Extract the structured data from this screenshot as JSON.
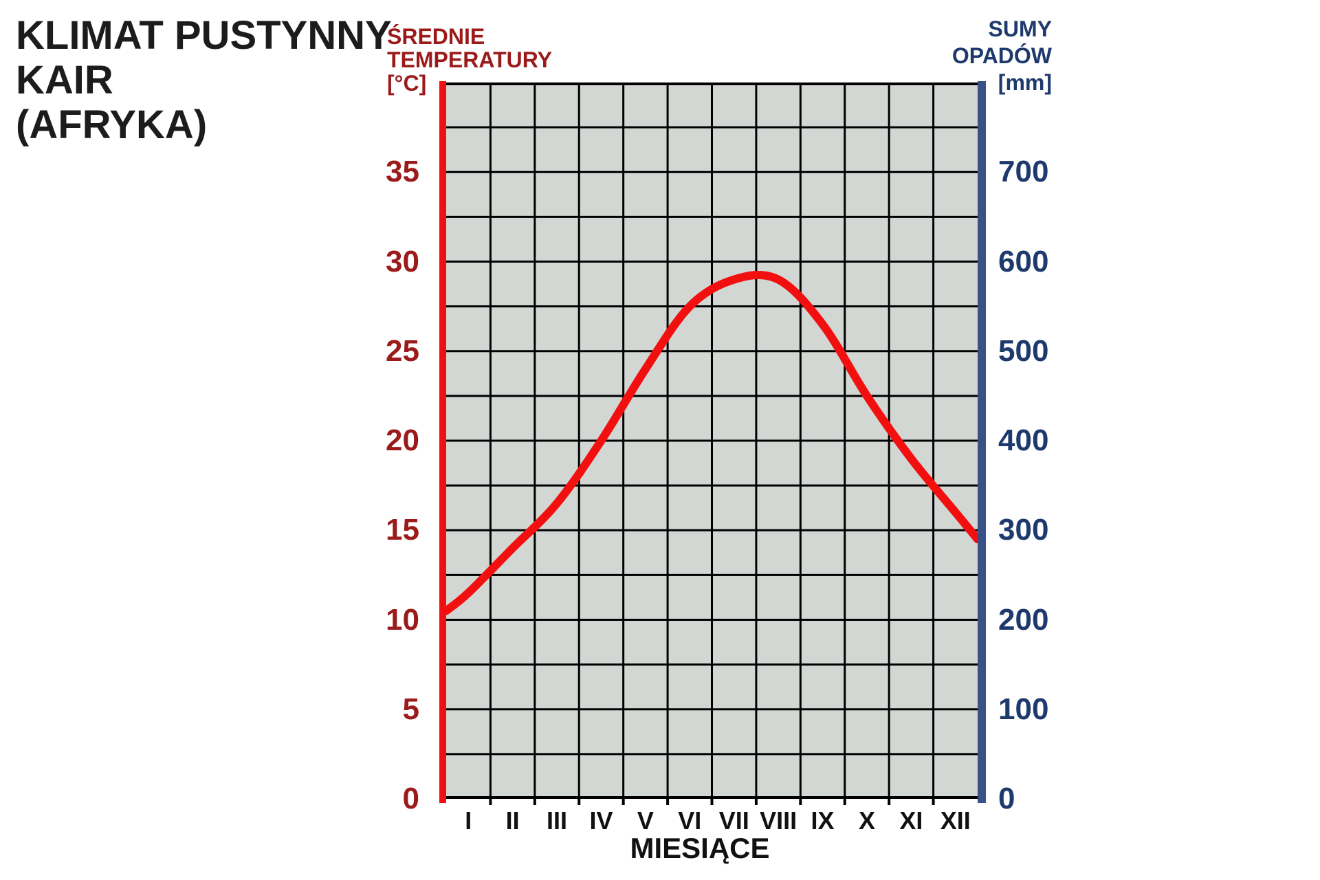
{
  "title_lines": [
    "KLIMAT PUSTYNNY",
    "KAIR",
    "(AFRYKA)"
  ],
  "left_axis_title_lines": [
    "ŚREDNIE",
    "TEMPERATURY",
    "[°C]"
  ],
  "right_axis_title_lines": [
    "SUMY",
    "OPADÓW",
    "[mm]"
  ],
  "x_axis_label": "MIESIĄCE",
  "colors": {
    "title_text": "#1c1c1c",
    "temp_axis_red": "#f20f0f",
    "temp_curve_red": "#f20f0f",
    "temp_label_maroon": "#9b1b1b",
    "precip_axis_navy": "#3a5187",
    "precip_label_navy": "#1e3a6d",
    "plot_background": "#d2d7d3",
    "grid_line": "#000000"
  },
  "chart_data": {
    "type": "line",
    "title": "KLIMAT PUSTYNNY KAIR (AFRYKA)",
    "categories": [
      "I",
      "II",
      "III",
      "IV",
      "V",
      "VI",
      "VII",
      "VIII",
      "IX",
      "X",
      "XI",
      "XII"
    ],
    "series": [
      {
        "name": "Średnie temperatury [°C]",
        "axis": "left",
        "color": "#f20f0f",
        "values": [
          11.5,
          14,
          16.5,
          20,
          24,
          27.5,
          29,
          29,
          26.5,
          22.5,
          19,
          16
        ]
      }
    ],
    "edge_values": {
      "left_edge_temp": 10.5,
      "right_edge_temp": 14.5
    },
    "left_axis": {
      "label": "ŚREDNIE TEMPERATURY [°C]",
      "range": [
        0,
        40
      ],
      "ticks": [
        0,
        5,
        10,
        15,
        20,
        25,
        30,
        35
      ]
    },
    "right_axis": {
      "label": "SUMY OPADÓW [mm]",
      "range": [
        0,
        800
      ],
      "ticks": [
        0,
        100,
        200,
        300,
        400,
        500,
        600,
        700
      ]
    },
    "xlabel": "MIESIĄCE",
    "grid": true,
    "legend_position": "none",
    "precipitation_bars": "none visible (desert climate)"
  }
}
